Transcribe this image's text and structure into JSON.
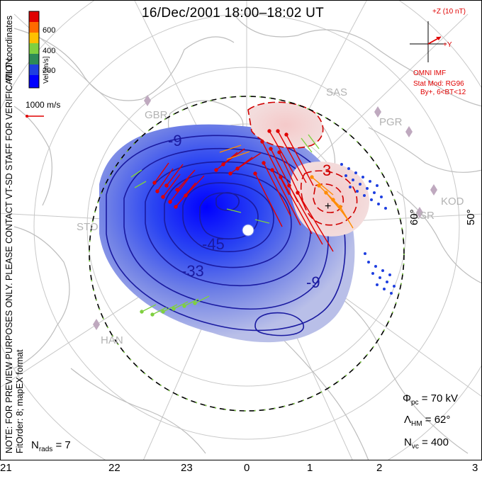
{
  "title": "16/Dec/2001  18:00–18:02  UT",
  "colorbar": {
    "label": "Vel [m/s]",
    "ticks": [
      "600",
      "400",
      "200"
    ],
    "colors": [
      "#e00000",
      "#ff6a00",
      "#ffc000",
      "#7fd040",
      "#2e8b57",
      "#1f3fe0",
      "#0000ff"
    ]
  },
  "side_text": {
    "coordinates": "MLT coordinates",
    "note": "NOTE: FOR PREVIEW PURPOSES ONLY. PLEASE CONTACT VT-SD STAFF FOR VERIFICATION.",
    "fit": "FitOrder: 8; mapEX format"
  },
  "scale": {
    "label": "1000 m/s"
  },
  "imf": {
    "z_label": "+Z (10 nT)",
    "y_label": "+Y",
    "source": "OMNI IMF",
    "stat_mod": "Stat Mod: RG96",
    "condition": "By+, 6<BT<12"
  },
  "stations": [
    "SAS",
    "PGR",
    "GBR",
    "KOD",
    "STO",
    "HAN",
    "KSR"
  ],
  "latitudes": [
    "60°",
    "50°"
  ],
  "contours": [
    "-9",
    "3",
    "-45",
    "-33",
    "-9"
  ],
  "indicators": {
    "phi_symbol": "Φ",
    "phi_sub": "pc",
    "phi_value": "= 70 kV",
    "lambda_symbol": "Λ",
    "lambda_sub": "HM",
    "lambda_value": "= 62°",
    "nvc_symbol": "N",
    "nvc_sub": "vc",
    "nvc_value": "= 400",
    "nrads_symbol": "N",
    "nrads_sub": "rads",
    "nrads_value": "= 7"
  },
  "mlt_ticks": [
    "21",
    "22",
    "23",
    "0",
    "1",
    "2",
    "3"
  ]
}
